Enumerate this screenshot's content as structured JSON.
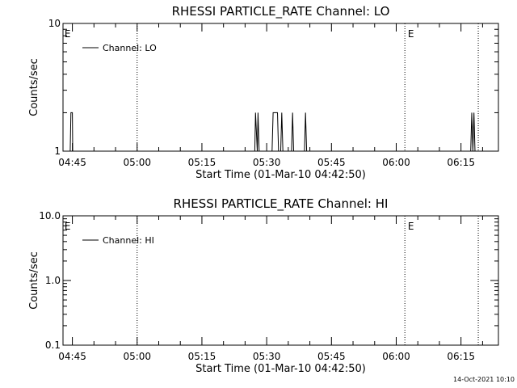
{
  "footer_date": "14-Oct-2021 10:10",
  "chart_data": [
    {
      "type": "line",
      "title": "RHESSI PARTICLE_RATE Channel: LO",
      "xlabel": "Start Time (01-Mar-10 04:42:50)",
      "ylabel": "Counts/sec",
      "yscale": "log",
      "ylim": [
        1,
        10
      ],
      "xlim": [
        "04:42:50",
        "06:23:40"
      ],
      "ytick_labels": [
        {
          "v": 10,
          "t": "10"
        },
        {
          "v": 1,
          "t": "1"
        }
      ],
      "xtick_labels": [
        "04:45",
        "05:00",
        "05:15",
        "05:30",
        "05:45",
        "06:00",
        "06:15"
      ],
      "grid": false,
      "legend_position": "top-left",
      "annotations": [
        {
          "text": "E",
          "x": "04:43:00"
        },
        {
          "text": "E",
          "x": "06:02:30"
        }
      ],
      "event_lines": [
        "05:00:00",
        "06:02:00",
        "06:19:00"
      ],
      "series": [
        {
          "name": "Channel: LO",
          "points": [
            [
              "04:44:30",
              1
            ],
            [
              "04:44:40",
              2
            ],
            [
              "04:45:00",
              2
            ],
            [
              "04:45:05",
              1
            ],
            [
              "05:27:15",
              1
            ],
            [
              "05:27:25",
              2
            ],
            [
              "05:27:50",
              1
            ],
            [
              "05:28:00",
              2
            ],
            [
              "05:28:15",
              1
            ],
            [
              "05:31:15",
              1
            ],
            [
              "05:31:30",
              2
            ],
            [
              "05:32:30",
              2
            ],
            [
              "05:32:45",
              1
            ],
            [
              "05:33:15",
              1
            ],
            [
              "05:33:30",
              2
            ],
            [
              "05:33:45",
              1
            ],
            [
              "05:35:45",
              1
            ],
            [
              "05:36:00",
              2
            ],
            [
              "05:36:15",
              1
            ],
            [
              "05:38:45",
              1
            ],
            [
              "05:39:00",
              2
            ],
            [
              "05:39:15",
              1
            ],
            [
              "06:17:15",
              1
            ],
            [
              "06:17:30",
              2
            ],
            [
              "06:17:45",
              1
            ],
            [
              "06:18:00",
              2
            ],
            [
              "06:18:15",
              1
            ]
          ]
        }
      ]
    },
    {
      "type": "line",
      "title": "RHESSI PARTICLE_RATE Channel: HI",
      "xlabel": "Start Time (01-Mar-10 04:42:50)",
      "ylabel": "Counts/sec",
      "yscale": "log",
      "ylim": [
        0.1,
        10
      ],
      "xlim": [
        "04:42:50",
        "06:23:40"
      ],
      "ytick_labels": [
        {
          "v": 10,
          "t": "10.0"
        },
        {
          "v": 1,
          "t": "1.0"
        },
        {
          "v": 0.1,
          "t": "0.1"
        }
      ],
      "xtick_labels": [
        "04:45",
        "05:00",
        "05:15",
        "05:30",
        "05:45",
        "06:00",
        "06:15"
      ],
      "grid": false,
      "legend_position": "top-left",
      "annotations": [
        {
          "text": "E",
          "x": "04:43:00"
        },
        {
          "text": "E",
          "x": "06:02:30"
        }
      ],
      "event_lines": [
        "05:00:00",
        "06:02:00",
        "06:19:00"
      ],
      "series": [
        {
          "name": "Channel: HI",
          "points": []
        }
      ]
    }
  ]
}
